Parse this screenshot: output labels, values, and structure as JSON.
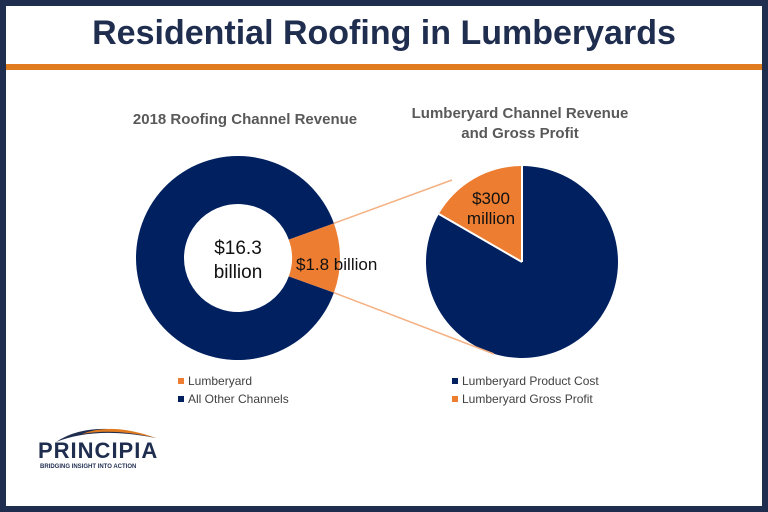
{
  "slide": {
    "title": "Residential Roofing in Lumberyards"
  },
  "colors": {
    "navy": "#002060",
    "orange": "#ed7d31",
    "title": "#1f2d4f",
    "rule": "#e07b20"
  },
  "chart_data": [
    {
      "type": "pie",
      "variant": "donut",
      "title": "2018 Roofing Channel Revenue",
      "units": "billion USD",
      "center_label": [
        "$16.3",
        "billion"
      ],
      "slices": [
        {
          "name": "Lumberyard",
          "value": 1.8,
          "label": "$1.8 billion",
          "color": "#ed7d31"
        },
        {
          "name": "All  Other Channels",
          "value": 14.5,
          "color": "#002060"
        }
      ],
      "legend_position": "bottom"
    },
    {
      "type": "pie",
      "title": "Lumberyard Channel Revenue and Gross Profit",
      "units": "million USD",
      "slices": [
        {
          "name": "Lumberyard Product Cost",
          "value": 1500,
          "color": "#002060"
        },
        {
          "name": "Lumberyard Gross Profit",
          "value": 300,
          "label": [
            "$300",
            "million"
          ],
          "color": "#ed7d31"
        }
      ],
      "legend_position": "bottom"
    }
  ],
  "legend_left": [
    "Lumberyard",
    "All  Other Channels"
  ],
  "legend_right": [
    "Lumberyard Product Cost",
    "Lumberyard Gross Profit"
  ],
  "logo": {
    "name": "PRINCIPIA",
    "tagline": "BRIDGING INSIGHT INTO ACTION"
  }
}
